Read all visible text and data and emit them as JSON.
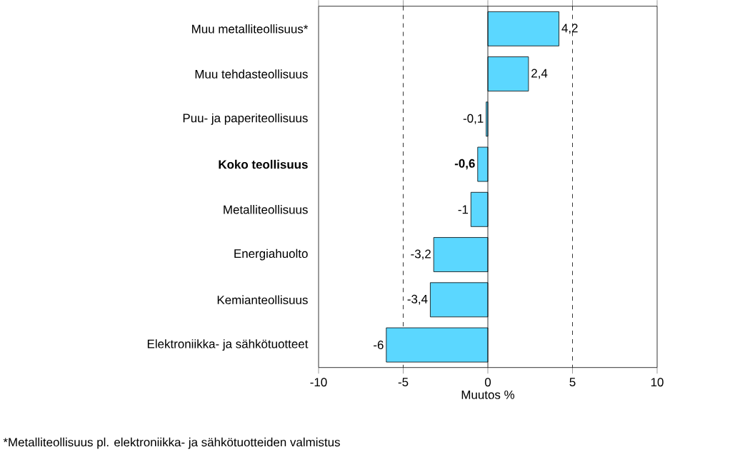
{
  "chart_data": {
    "type": "bar",
    "orientation": "horizontal",
    "xlabel": "Muutos %",
    "categories": [
      "Muu metalliteollisuus*",
      "Muu tehdasteollisuus",
      "Puu- ja paperiteollisuus",
      "**Koko teollisuus**",
      "Metalliteollisuus",
      "Energiahuolto",
      "Kemianteollisuus",
      "Elektroniikka- ja sähkötuotteet"
    ],
    "values": [
      4.2,
      2.4,
      -0.1,
      -0.6,
      -1,
      -3.2,
      -3.4,
      -6
    ],
    "value_labels": [
      "4,2",
      "2,4",
      "-0,1",
      "**-0,6**",
      "-1",
      "-3,2",
      "-3,4",
      "-6"
    ],
    "color": "#5bd7ff",
    "xlim": [
      -10,
      10
    ],
    "xticks": [
      -10,
      -5,
      0,
      5,
      10
    ],
    "ref_lines": [
      {
        "axis": "x",
        "value": -5,
        "line_style": "dashed",
        "color": "#000000"
      },
      {
        "axis": "x",
        "value": 5,
        "line_style": "dashed",
        "color": "#000000"
      }
    ],
    "annotations": [
      "*Metalliteollisuus pl. elektroniikka- ja sähkötuotteiden valmistus"
    ]
  }
}
